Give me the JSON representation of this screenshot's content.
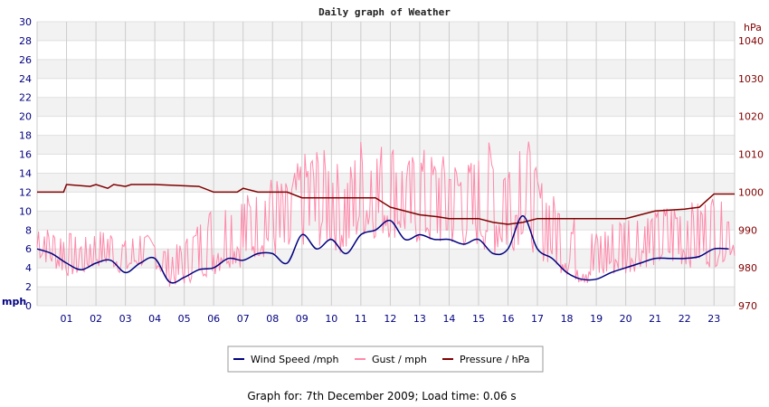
{
  "chart_data": {
    "type": "line",
    "title": "Daily graph of Weather",
    "y_left": {
      "unit": "mph",
      "range": [
        0,
        30
      ],
      "ticks": [
        0,
        2,
        4,
        6,
        8,
        10,
        12,
        14,
        16,
        18,
        20,
        22,
        24,
        26,
        28,
        30
      ]
    },
    "y_right": {
      "unit": "hPa",
      "range": [
        970,
        1045
      ],
      "ticks": [
        970,
        980,
        990,
        1000,
        1010,
        1020,
        1030,
        1040
      ]
    },
    "x": {
      "range": [
        0,
        23.7
      ],
      "tick_labels": [
        "01",
        "02",
        "03",
        "04",
        "05",
        "06",
        "07",
        "08",
        "09",
        "10",
        "11",
        "12",
        "13",
        "14",
        "15",
        "16",
        "17",
        "18",
        "19",
        "20",
        "21",
        "22",
        "23"
      ]
    },
    "grid": true,
    "legend_position": "bottom",
    "series": [
      {
        "name": "Wind Speed /mph",
        "axis": "left",
        "color": "#000080",
        "x": [
          0,
          0.5,
          1,
          1.5,
          2,
          2.5,
          3,
          3.5,
          4,
          4.5,
          5,
          5.5,
          6,
          6.5,
          7,
          7.5,
          8,
          8.5,
          9,
          9.5,
          10,
          10.5,
          11,
          11.5,
          12,
          12.5,
          13,
          13.5,
          14,
          14.5,
          15,
          15.5,
          16,
          16.5,
          17,
          17.5,
          18,
          18.5,
          19,
          19.5,
          20,
          20.5,
          21,
          21.5,
          22,
          22.5,
          23,
          23.5
        ],
        "values": [
          6,
          5.5,
          4.5,
          3.8,
          4.5,
          4.8,
          3.5,
          4.5,
          5,
          2.5,
          3,
          3.8,
          4,
          5,
          4.8,
          5.5,
          5.5,
          4.5,
          7.5,
          6,
          7,
          5.5,
          7.5,
          8,
          9,
          7,
          7.5,
          7,
          7,
          6.5,
          7,
          5.5,
          6,
          9.5,
          6,
          5,
          3.5,
          2.8,
          2.8,
          3.5,
          4,
          4.5,
          5,
          5,
          5,
          5.2,
          6,
          6
        ]
      },
      {
        "name": "Gust / mph",
        "axis": "left",
        "color": "#ff88aa",
        "x": [
          0,
          0.5,
          1,
          1.5,
          2,
          2.5,
          3,
          3.5,
          4,
          4.5,
          5,
          5.5,
          6,
          6.5,
          7,
          7.5,
          8,
          8.5,
          9,
          9.5,
          10,
          10.5,
          11,
          11.5,
          12,
          12.5,
          13,
          13.5,
          14,
          14.5,
          15,
          15.5,
          16,
          16.5,
          17,
          17.5,
          18,
          18.5,
          19,
          19.5,
          20,
          20.5,
          21,
          21.5,
          22,
          22.5,
          23,
          23.5
        ],
        "min": [
          5,
          4,
          3,
          3,
          4,
          4,
          3,
          4,
          4,
          2,
          2,
          3,
          3,
          4,
          4,
          5,
          5,
          4,
          6,
          6,
          6,
          5,
          7,
          7,
          7,
          7,
          6,
          6,
          6,
          6,
          6,
          5,
          5,
          7,
          5,
          4,
          3,
          2,
          2,
          3,
          3,
          4,
          4,
          4,
          4,
          4,
          4,
          5
        ],
        "max": [
          9,
          8,
          8,
          7,
          8,
          8,
          7,
          8,
          7,
          6,
          7,
          9,
          11,
          11,
          12,
          12,
          14,
          13,
          16,
          17,
          16,
          14,
          18,
          17,
          18,
          15,
          17,
          16,
          16,
          15,
          16,
          18,
          16,
          20,
          14,
          12,
          10,
          9,
          8,
          9,
          10,
          10,
          10,
          11,
          11,
          11,
          12,
          10
        ]
      },
      {
        "name": "Pressure / hPa",
        "axis": "right",
        "color": "#800000",
        "x": [
          0,
          0.9,
          1,
          1.8,
          2,
          2.4,
          2.6,
          3,
          3.2,
          4,
          5.5,
          6,
          6.8,
          7,
          7.5,
          8.5,
          9,
          11.5,
          12,
          13,
          13.6,
          14,
          15,
          15.5,
          16,
          16.5,
          17,
          20,
          20.5,
          21,
          22,
          22.5,
          23,
          23.7
        ],
        "values": [
          1000,
          1000,
          1002,
          1001.5,
          1002,
          1001,
          1002,
          1001.5,
          1002,
          1002,
          1001.5,
          1000,
          1000,
          1001,
          1000,
          1000,
          998.5,
          998.5,
          996,
          994,
          993.5,
          993,
          993,
          992,
          991.5,
          992,
          993,
          993,
          994,
          995,
          995.5,
          996,
          999.5,
          999.5
        ]
      }
    ]
  },
  "footer": {
    "text": "Graph for: 7th December 2009; Load time: 0.06 s"
  }
}
